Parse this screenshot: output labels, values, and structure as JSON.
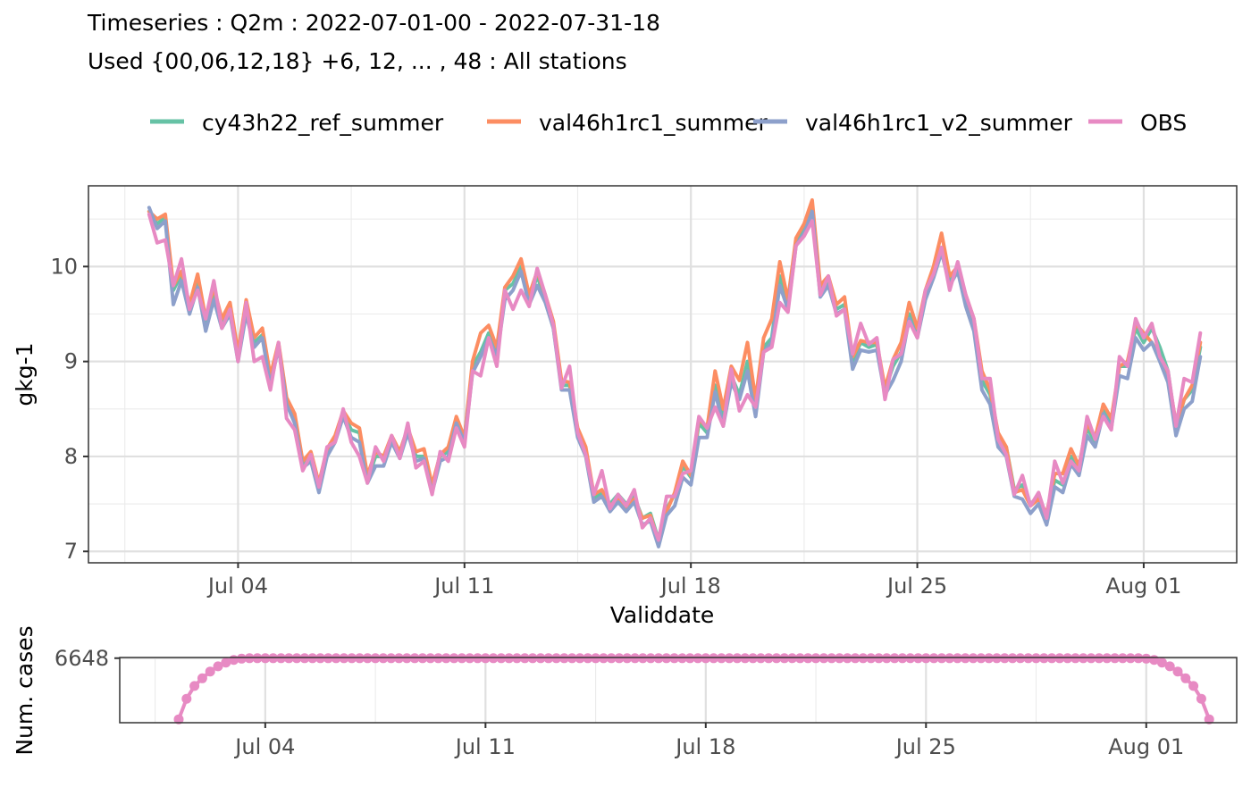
{
  "titles": {
    "line1": "Timeseries : Q2m : 2022-07-01-00 - 2022-07-31-18",
    "line2": "Used {00,06,12,18} +6, 12, ... , 48 : All stations"
  },
  "chart_data": [
    {
      "type": "line",
      "xlabel": "Validdate",
      "ylabel": "gkg-1",
      "x_start": "2022-07-01 06:00",
      "x_step_hours": 6,
      "xlim": [
        "2022-06-29 09:00",
        "2022-08-03 21:00"
      ],
      "ylim": [
        6.88,
        10.85
      ],
      "x_ticks": [
        {
          "date": "2022-07-04",
          "label": "Jul 04"
        },
        {
          "date": "2022-07-11",
          "label": "Jul 11"
        },
        {
          "date": "2022-07-18",
          "label": "Jul 18"
        },
        {
          "date": "2022-07-25",
          "label": "Jul 25"
        },
        {
          "date": "2022-08-01",
          "label": "Aug 01"
        }
      ],
      "y_ticks": [
        7,
        8,
        9,
        10
      ],
      "grid": true,
      "legend_position": "top",
      "series": [
        {
          "name": "cy43h22_ref_summer",
          "color": "#66C2A5",
          "values": [
            10.58,
            10.45,
            10.52,
            9.75,
            9.92,
            9.58,
            9.85,
            9.4,
            9.7,
            9.4,
            9.55,
            9.05,
            9.55,
            9.2,
            9.28,
            8.8,
            9.18,
            8.6,
            8.38,
            7.9,
            8.02,
            7.7,
            8.05,
            8.2,
            8.45,
            8.28,
            8.25,
            7.75,
            8.0,
            8.0,
            8.2,
            8.05,
            8.3,
            8.0,
            8.0,
            7.65,
            8.0,
            8.05,
            8.4,
            8.2,
            8.95,
            9.1,
            9.3,
            9.1,
            9.75,
            9.82,
            10.0,
            9.65,
            9.9,
            9.65,
            9.35,
            8.75,
            8.75,
            8.25,
            8.05,
            7.55,
            7.62,
            7.5,
            7.6,
            7.5,
            7.58,
            7.35,
            7.4,
            7.12,
            7.45,
            7.6,
            7.9,
            7.78,
            8.35,
            8.25,
            8.75,
            8.4,
            8.85,
            8.65,
            9.0,
            8.5,
            9.15,
            9.25,
            9.9,
            9.6,
            10.25,
            10.4,
            10.62,
            9.75,
            9.85,
            9.55,
            9.6,
            9.0,
            9.2,
            9.15,
            9.18,
            8.7,
            8.95,
            9.1,
            9.5,
            9.3,
            9.7,
            9.9,
            10.2,
            9.85,
            10.0,
            9.65,
            9.4,
            8.8,
            8.65,
            8.2,
            8.1,
            7.65,
            7.7,
            7.5,
            7.58,
            7.38,
            7.75,
            7.7,
            8.0,
            7.85,
            8.3,
            8.15,
            8.5,
            8.35,
            8.95,
            8.95,
            9.35,
            9.2,
            9.35,
            9.15,
            8.9,
            8.3,
            8.6,
            8.7,
            9.15
          ]
        },
        {
          "name": "val46h1rc1_summer",
          "color": "#FC8D62",
          "values": [
            10.58,
            10.5,
            10.55,
            9.8,
            9.95,
            9.6,
            9.92,
            9.45,
            9.78,
            9.45,
            9.62,
            9.1,
            9.65,
            9.25,
            9.35,
            8.85,
            9.2,
            8.62,
            8.45,
            7.95,
            8.05,
            7.72,
            8.08,
            8.22,
            8.48,
            8.35,
            8.3,
            7.8,
            8.05,
            8.0,
            8.22,
            8.05,
            8.3,
            8.05,
            8.08,
            7.7,
            8.02,
            8.1,
            8.42,
            8.2,
            9.0,
            9.3,
            9.38,
            9.15,
            9.78,
            9.9,
            10.08,
            9.7,
            9.95,
            9.7,
            9.42,
            8.8,
            8.78,
            8.3,
            8.1,
            7.6,
            7.65,
            7.48,
            7.55,
            7.45,
            7.55,
            7.35,
            7.38,
            7.1,
            7.42,
            7.62,
            7.95,
            7.8,
            8.4,
            8.3,
            8.9,
            8.5,
            8.95,
            8.8,
            9.2,
            8.6,
            9.25,
            9.45,
            10.05,
            9.65,
            10.3,
            10.45,
            10.7,
            9.8,
            9.9,
            9.6,
            9.68,
            9.05,
            9.22,
            9.2,
            9.2,
            8.72,
            9.02,
            9.2,
            9.62,
            9.35,
            9.75,
            10.0,
            10.35,
            9.9,
            10.0,
            9.7,
            9.45,
            8.9,
            8.7,
            8.25,
            8.1,
            7.62,
            7.65,
            7.48,
            7.55,
            7.4,
            7.82,
            7.82,
            8.08,
            7.9,
            8.35,
            8.2,
            8.55,
            8.4,
            8.95,
            9.0,
            9.4,
            9.3,
            9.2,
            9.05,
            8.85,
            8.35,
            8.6,
            8.75,
            9.2
          ]
        },
        {
          "name": "val46h1rc1_v2_summer",
          "color": "#8DA0CB",
          "values": [
            10.62,
            10.4,
            10.48,
            9.6,
            9.85,
            9.5,
            9.78,
            9.32,
            9.65,
            9.35,
            9.5,
            9.0,
            9.5,
            9.15,
            9.25,
            8.75,
            9.15,
            8.55,
            8.35,
            7.88,
            7.95,
            7.62,
            8.0,
            8.15,
            8.42,
            8.2,
            8.15,
            7.72,
            7.9,
            7.9,
            8.15,
            7.98,
            8.25,
            7.95,
            7.98,
            7.62,
            7.95,
            8.0,
            8.35,
            8.15,
            8.88,
            9.05,
            9.25,
            9.05,
            9.65,
            9.75,
            9.95,
            9.6,
            9.8,
            9.62,
            9.35,
            8.7,
            8.7,
            8.2,
            8.0,
            7.52,
            7.58,
            7.42,
            7.52,
            7.42,
            7.52,
            7.28,
            7.32,
            7.05,
            7.38,
            7.48,
            7.78,
            7.7,
            8.2,
            8.2,
            8.68,
            8.32,
            8.78,
            8.6,
            8.9,
            8.42,
            9.1,
            9.2,
            9.8,
            9.55,
            10.22,
            10.35,
            10.58,
            9.68,
            9.8,
            9.5,
            9.55,
            8.92,
            9.12,
            9.1,
            9.12,
            8.65,
            8.8,
            9.0,
            9.45,
            9.25,
            9.65,
            9.88,
            10.15,
            9.8,
            9.95,
            9.58,
            9.32,
            8.7,
            8.55,
            8.1,
            8.0,
            7.58,
            7.55,
            7.4,
            7.5,
            7.28,
            7.68,
            7.62,
            7.92,
            7.8,
            8.22,
            8.1,
            8.45,
            8.3,
            8.85,
            8.82,
            9.25,
            9.12,
            9.2,
            9.0,
            8.78,
            8.22,
            8.5,
            8.58,
            9.05
          ]
        },
        {
          "name": "OBS",
          "color": "#E78AC3",
          "values": [
            10.55,
            10.25,
            10.28,
            9.8,
            10.08,
            9.55,
            9.75,
            9.45,
            9.85,
            9.35,
            9.55,
            9.0,
            9.62,
            9.0,
            9.05,
            8.7,
            9.2,
            8.4,
            8.28,
            7.85,
            8.02,
            7.68,
            8.1,
            8.15,
            8.5,
            8.15,
            8.0,
            7.72,
            8.1,
            7.95,
            8.22,
            7.98,
            8.35,
            7.88,
            7.95,
            7.6,
            8.05,
            7.95,
            8.3,
            8.1,
            8.9,
            8.85,
            9.25,
            8.95,
            9.75,
            9.55,
            9.75,
            9.58,
            9.98,
            9.7,
            9.38,
            8.72,
            8.95,
            8.25,
            8.02,
            7.6,
            7.85,
            7.45,
            7.6,
            7.48,
            7.65,
            7.25,
            7.35,
            7.12,
            7.58,
            7.58,
            7.82,
            7.85,
            8.42,
            8.3,
            8.52,
            8.32,
            8.92,
            8.48,
            8.65,
            8.52,
            9.1,
            9.15,
            9.62,
            9.52,
            10.22,
            10.32,
            10.48,
            9.7,
            9.9,
            9.48,
            9.55,
            9.08,
            9.4,
            9.18,
            9.25,
            8.6,
            9.02,
            9.08,
            9.42,
            9.25,
            9.75,
            9.92,
            10.2,
            9.75,
            10.05,
            9.7,
            9.45,
            8.82,
            8.82,
            8.18,
            8.02,
            7.6,
            7.8,
            7.48,
            7.62,
            7.35,
            7.95,
            7.72,
            7.95,
            7.85,
            8.42,
            8.18,
            8.42,
            8.28,
            9.05,
            8.95,
            9.45,
            9.25,
            9.4,
            9.05,
            8.9,
            8.32,
            8.82,
            8.78,
            9.3
          ]
        }
      ]
    },
    {
      "type": "line",
      "ylabel": "Num. cases",
      "y_ticks": [
        6648
      ],
      "ylim": [
        6270,
        6652
      ],
      "xlim": [
        "2022-06-29 09:00",
        "2022-08-03 21:00"
      ],
      "x_ticks": [
        {
          "date": "2022-07-04",
          "label": "Jul 04"
        },
        {
          "date": "2022-07-11",
          "label": "Jul 11"
        },
        {
          "date": "2022-07-18",
          "label": "Jul 18"
        },
        {
          "date": "2022-07-25",
          "label": "Jul 25"
        },
        {
          "date": "2022-08-01",
          "label": "Aug 01"
        }
      ],
      "grid": true,
      "series": [
        {
          "color": "#E78AC3",
          "markers": true,
          "x_start": "2022-07-01 06:00",
          "x_step_hours": 6,
          "values": [
            6290,
            6410,
            6485,
            6530,
            6570,
            6600,
            6622,
            6638,
            6645,
            6648,
            6648,
            6648,
            6648,
            6648,
            6648,
            6648,
            6648,
            6648,
            6648,
            6648,
            6648,
            6648,
            6648,
            6648,
            6648,
            6648,
            6648,
            6648,
            6648,
            6648,
            6648,
            6648,
            6648,
            6648,
            6648,
            6648,
            6648,
            6648,
            6648,
            6648,
            6648,
            6648,
            6648,
            6648,
            6648,
            6648,
            6648,
            6648,
            6648,
            6648,
            6648,
            6648,
            6648,
            6648,
            6648,
            6648,
            6648,
            6648,
            6648,
            6648,
            6648,
            6648,
            6648,
            6648,
            6648,
            6648,
            6648,
            6648,
            6648,
            6648,
            6648,
            6648,
            6648,
            6648,
            6648,
            6648,
            6648,
            6648,
            6648,
            6648,
            6648,
            6648,
            6648,
            6648,
            6648,
            6648,
            6648,
            6648,
            6648,
            6648,
            6648,
            6648,
            6648,
            6648,
            6648,
            6648,
            6648,
            6648,
            6648,
            6648,
            6648,
            6648,
            6648,
            6648,
            6648,
            6648,
            6648,
            6648,
            6648,
            6648,
            6648,
            6648,
            6648,
            6648,
            6648,
            6648,
            6648,
            6648,
            6648,
            6648,
            6648,
            6648,
            6648,
            6645,
            6638,
            6622,
            6600,
            6570,
            6530,
            6485,
            6410,
            6290
          ]
        }
      ]
    }
  ]
}
